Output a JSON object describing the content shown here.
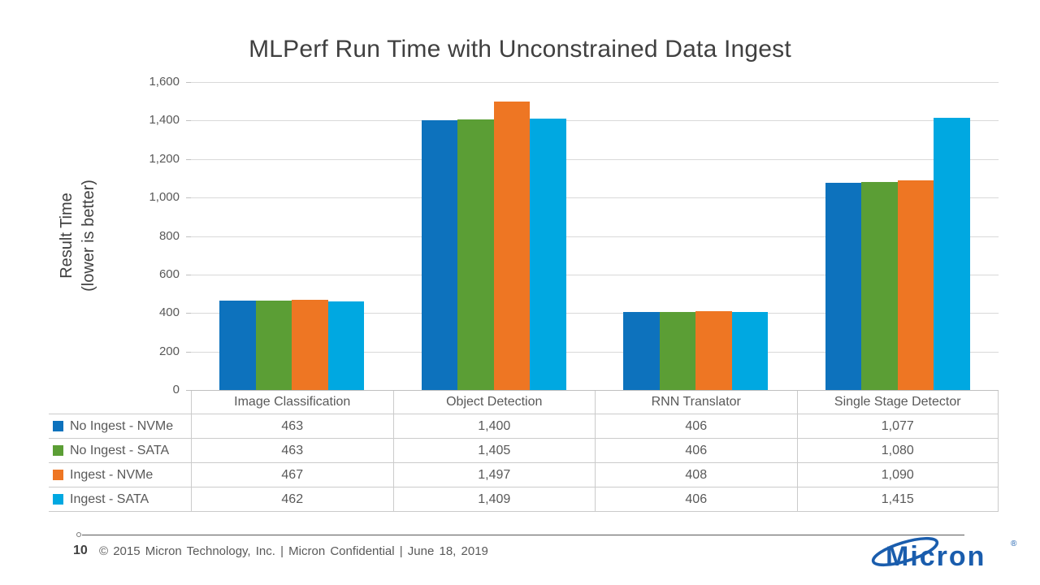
{
  "title": "MLPerf Run Time with Unconstrained Data Ingest",
  "chart_data": {
    "type": "bar",
    "title": "MLPerf Run Time with Unconstrained Data Ingest",
    "categories": [
      "Image Classification",
      "Object Detection",
      "RNN Translator",
      "Single Stage Detector"
    ],
    "series": [
      {
        "name": "No Ingest - NVMe",
        "color": "#0D72BD",
        "values": [
          463,
          1400,
          406,
          1077
        ]
      },
      {
        "name": "No Ingest - SATA",
        "color": "#5B9E35",
        "values": [
          463,
          1405,
          406,
          1080
        ]
      },
      {
        "name": "Ingest - NVMe",
        "color": "#EE7623",
        "values": [
          467,
          1497,
          408,
          1090
        ]
      },
      {
        "name": "Ingest - SATA",
        "color": "#00A8E1",
        "values": [
          462,
          1409,
          406,
          1415
        ]
      }
    ],
    "ylabel": "Result Time (lower is better)",
    "ylabel_lines": [
      "Result Time",
      "(lower is better)"
    ],
    "ylim": [
      0,
      1600
    ],
    "ytick_step": 200,
    "grid": true,
    "legend_position": "data-table-left",
    "data_table_shown": true
  },
  "footer": {
    "page_number": "10",
    "text": "© 2015 Micron Technology, Inc. | Micron Confidential | June 18, 2019",
    "logo_text": "Micron",
    "logo_registered": "®"
  },
  "colors": {
    "title_text": "#404040",
    "axis_text": "#595959",
    "gridline": "#D9D9D9",
    "table_border": "#CBCBCB",
    "logo_blue": "#1A5DAD"
  }
}
